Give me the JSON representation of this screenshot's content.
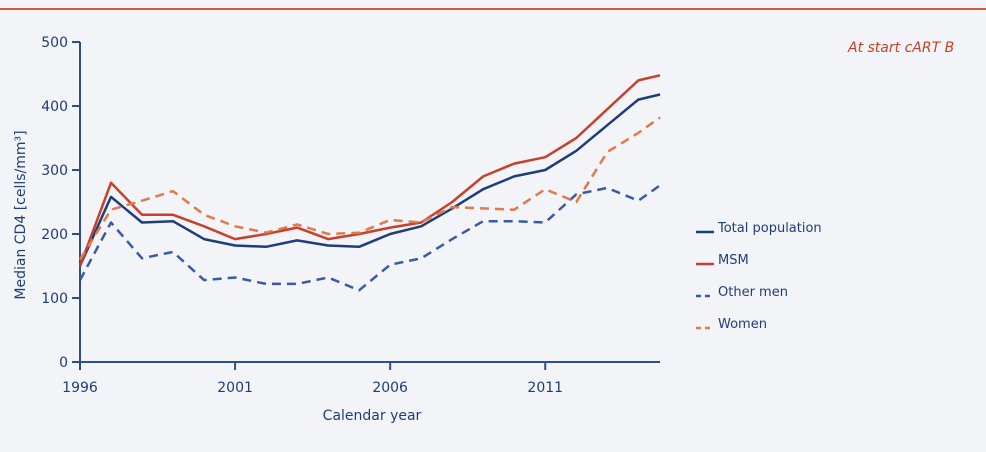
{
  "side_label": "At start cART   B",
  "colors": {
    "navy": "#1f3d7a",
    "red": "#c8402c",
    "blue_dash": "#3a5aa8",
    "orange_dash": "#e07a4a",
    "axis": "#2d4e8a",
    "text": "#1f3d7a"
  },
  "chart_data": {
    "type": "line",
    "xlabel": "Calendar year",
    "ylabel": "Median CD4 [cells/mm³]",
    "xlim": [
      1996,
      2014.7
    ],
    "ylim": [
      0,
      500
    ],
    "xticks": [
      1996,
      2001,
      2006,
      2011
    ],
    "yticks": [
      0,
      100,
      200,
      300,
      400,
      500
    ],
    "x": [
      1996,
      1997,
      1998,
      1999,
      2000,
      2001,
      2002,
      2003,
      2004,
      2005,
      2006,
      2007,
      2008,
      2009,
      2010,
      2011,
      2012,
      2013,
      2014,
      2014.7
    ],
    "series": [
      {
        "name": "Total population",
        "color": "#1f3d7a",
        "dash": "solid",
        "values": [
          150,
          258,
          218,
          220,
          192,
          182,
          180,
          190,
          182,
          180,
          200,
          212,
          240,
          270,
          290,
          300,
          330,
          370,
          410,
          418
        ]
      },
      {
        "name": "MSM",
        "color": "#c8402c",
        "dash": "solid",
        "values": [
          150,
          280,
          230,
          230,
          212,
          192,
          200,
          210,
          192,
          200,
          210,
          218,
          250,
          290,
          310,
          320,
          350,
          395,
          440,
          448
        ]
      },
      {
        "name": "Other men",
        "color": "#3a5aa8",
        "dash": "dashed",
        "values": [
          128,
          218,
          162,
          172,
          128,
          132,
          122,
          122,
          132,
          112,
          152,
          162,
          192,
          220,
          220,
          218,
          262,
          272,
          252,
          276
        ]
      },
      {
        "name": "Women",
        "color": "#e07a4a",
        "dash": "dashed",
        "values": [
          160,
          238,
          252,
          267,
          230,
          212,
          202,
          215,
          200,
          202,
          222,
          218,
          242,
          240,
          238,
          270,
          250,
          328,
          358,
          382
        ]
      }
    ],
    "legend_position": "right"
  }
}
